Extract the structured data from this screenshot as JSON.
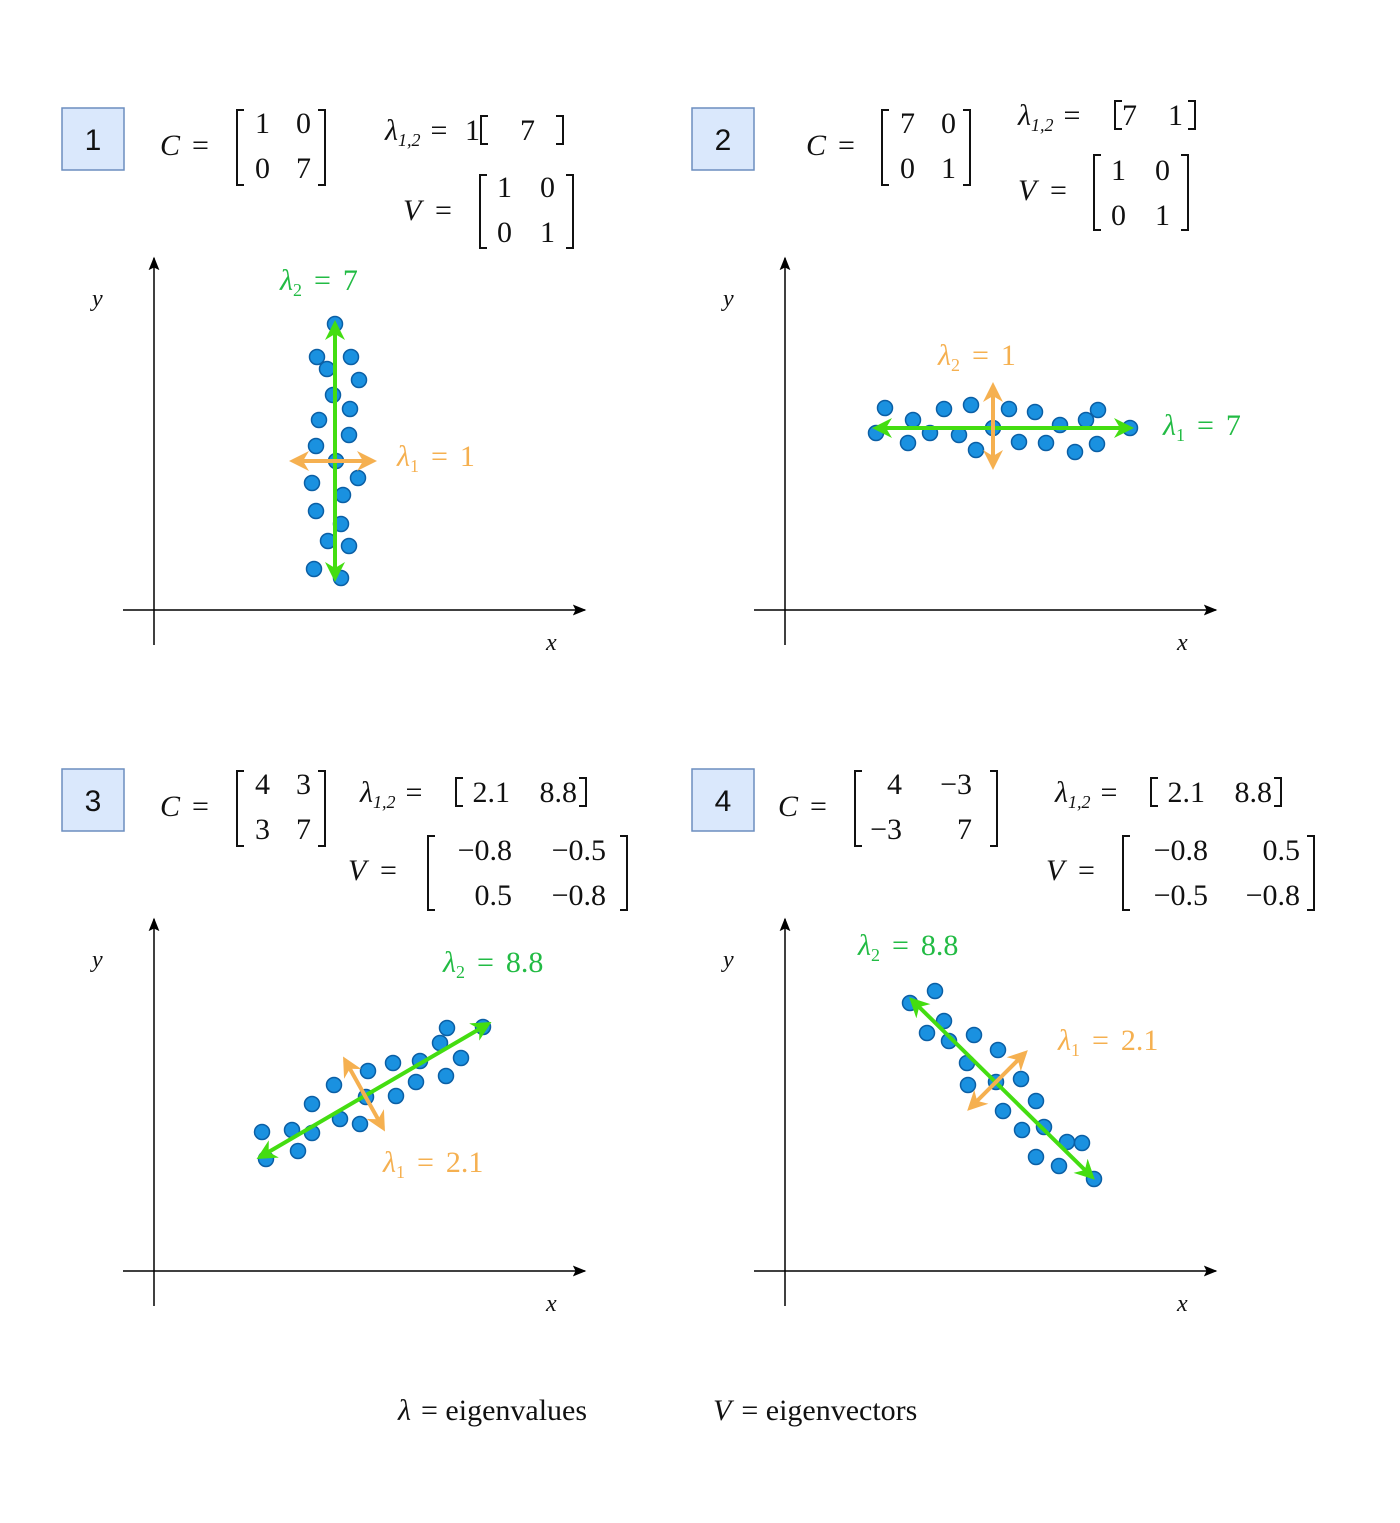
{
  "colors": {
    "point_fill": "#1A91E0",
    "point_stroke": "#0B5FA5",
    "major_arrow": "#44DD11",
    "minor_arrow": "#F5B050",
    "major_label": "#22BB44",
    "minor_label": "#F5B050",
    "box_fill": "#DAE8FC",
    "box_stroke": "#6C8EBF"
  },
  "axis_labels": {
    "x": "x",
    "y": "y"
  },
  "panels": [
    {
      "number": "1",
      "C": [
        [
          "1",
          "0"
        ],
        [
          "0",
          "7"
        ]
      ],
      "lambdas": [
        "1",
        "7"
      ],
      "V": [
        [
          "1",
          "0"
        ],
        [
          "0",
          "1"
        ]
      ],
      "major": {
        "sym": "λ",
        "sub": "2",
        "eq": "=",
        "value": "7"
      },
      "minor": {
        "sym": "λ",
        "sub": "1",
        "eq": "=",
        "value": "1"
      }
    },
    {
      "number": "2",
      "C": [
        [
          "7",
          "0"
        ],
        [
          "0",
          "1"
        ]
      ],
      "lambdas": [
        "7",
        "1"
      ],
      "V": [
        [
          "1",
          "0"
        ],
        [
          "0",
          "1"
        ]
      ],
      "major": {
        "sym": "λ",
        "sub": "1",
        "eq": "=",
        "value": "7"
      },
      "minor": {
        "sym": "λ",
        "sub": "2",
        "eq": "=",
        "value": "1"
      }
    },
    {
      "number": "3",
      "C": [
        [
          "4",
          "3"
        ],
        [
          "3",
          "7"
        ]
      ],
      "lambdas": [
        "2.1",
        "8.8"
      ],
      "V": [
        [
          "−0.8",
          "−0.5"
        ],
        [
          "0.5",
          "−0.8"
        ]
      ],
      "major": {
        "sym": "λ",
        "sub": "2",
        "eq": "=",
        "value": "8.8"
      },
      "minor": {
        "sym": "λ",
        "sub": "1",
        "eq": "=",
        "value": "2.1"
      }
    },
    {
      "number": "4",
      "C": [
        [
          "4",
          "−3"
        ],
        [
          "−3",
          "7"
        ]
      ],
      "lambdas": [
        "2.1",
        "8.8"
      ],
      "V": [
        [
          "−0.8",
          "0.5"
        ],
        [
          "−0.5",
          "−0.8"
        ]
      ],
      "major": {
        "sym": "λ",
        "sub": "2",
        "eq": "=",
        "value": "8.8"
      },
      "minor": {
        "sym": "λ",
        "sub": "1",
        "eq": "=",
        "value": "2.1"
      }
    }
  ],
  "labels": {
    "C": "C",
    "V": "V",
    "lambda": "λ",
    "lambda_sub": "1,2",
    "eq": "="
  },
  "legend": {
    "lambda_sym": "λ",
    "lambda_text": "= eigenvalues",
    "v_sym": "V",
    "v_text": "= eigenvectors"
  }
}
